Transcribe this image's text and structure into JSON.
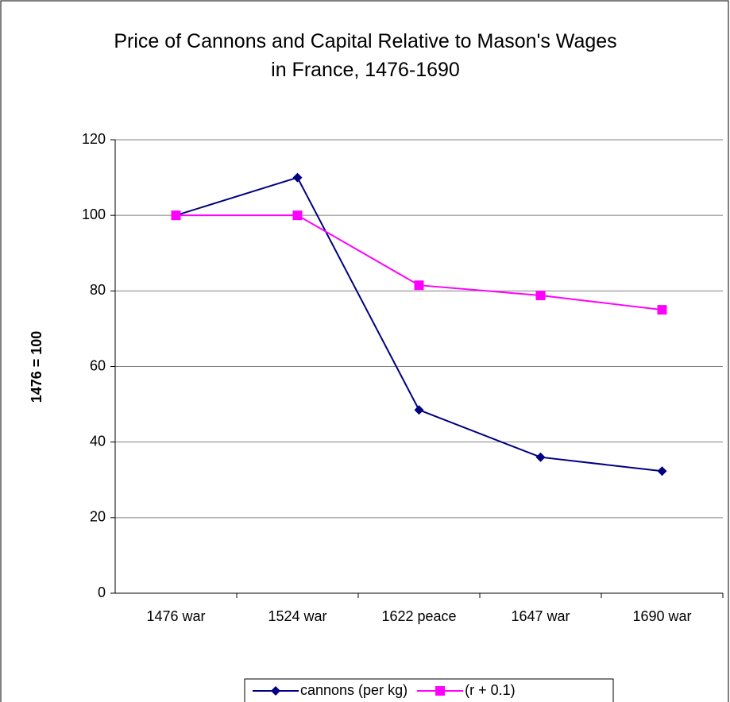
{
  "chart_data": {
    "type": "line",
    "title": "Price of Cannons and Capital Relative to Mason's Wages in France, 1476-1690",
    "y_label": "1476 = 100",
    "categories": [
      "1476 war",
      "1524 war",
      "1622 peace",
      "1647 war",
      "1690 war"
    ],
    "series": [
      {
        "name": "cannons (per kg)",
        "color": "#000080",
        "marker": "diamond",
        "values": [
          100,
          110,
          48.5,
          36,
          32.3
        ]
      },
      {
        "name": "(r + 0.1)",
        "color": "#ff00ff",
        "marker": "square",
        "values": [
          100,
          100,
          81.5,
          78.8,
          75
        ]
      }
    ],
    "ylim": [
      0,
      120
    ],
    "yticks": [
      0,
      20,
      40,
      60,
      80,
      100,
      120
    ],
    "grid": true,
    "legend": "bottom"
  }
}
